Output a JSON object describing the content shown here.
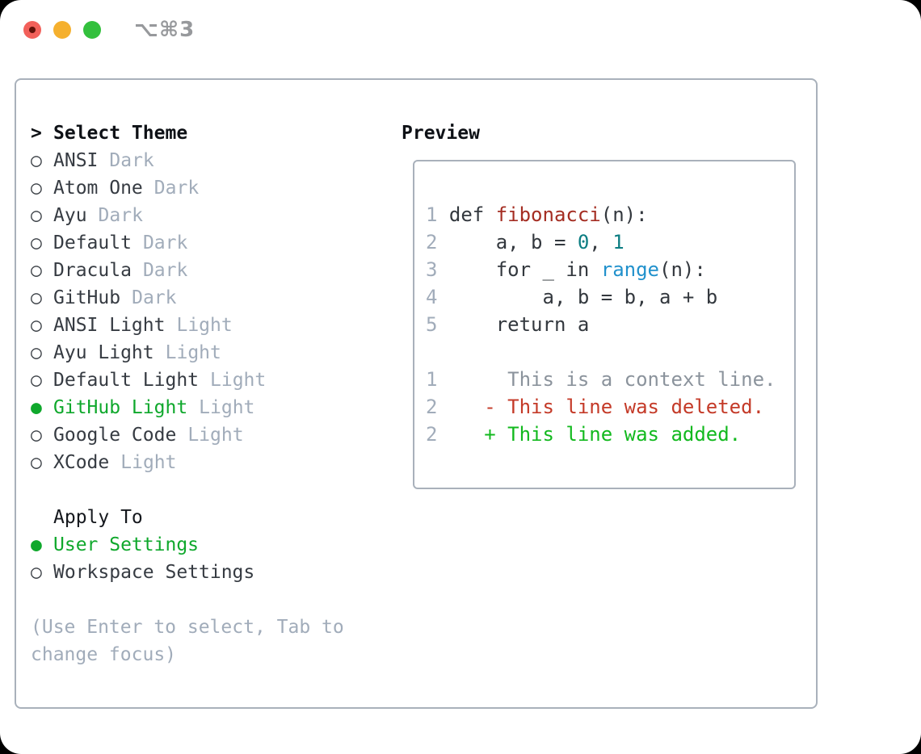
{
  "titlebar": {
    "shortcut_label": "⌥⌘3",
    "traffic_light_colors": {
      "close": "#f2605a",
      "minimize": "#f5b02e",
      "zoom": "#33c03d"
    }
  },
  "colors": {
    "selection_green": "#0fa82c",
    "added_green": "#12b91e",
    "deleted_red": "#c43a28",
    "function_red": "#a42d22",
    "number_teal": "#0c7d82",
    "call_blue": "#2191cc",
    "muted_gray": "#a1acba",
    "panel_border": "#a9b1bb"
  },
  "theme_picker": {
    "header": {
      "marker": ">",
      "label": "Select Theme"
    },
    "items": [
      {
        "marker": "○",
        "name": "ANSI",
        "variant": "Dark"
      },
      {
        "marker": "○",
        "name": "Atom One",
        "variant": "Dark"
      },
      {
        "marker": "○",
        "name": "Ayu",
        "variant": "Dark"
      },
      {
        "marker": "○",
        "name": "Default",
        "variant": "Dark"
      },
      {
        "marker": "○",
        "name": "Dracula",
        "variant": "Dark"
      },
      {
        "marker": "○",
        "name": "GitHub",
        "variant": "Dark"
      },
      {
        "marker": "○",
        "name": "ANSI Light",
        "variant": "Light"
      },
      {
        "marker": "○",
        "name": "Ayu Light",
        "variant": "Light"
      },
      {
        "marker": "○",
        "name": "Default Light",
        "variant": "Light"
      },
      {
        "marker": "●",
        "name": "GitHub Light",
        "variant": "Light",
        "selected": true
      },
      {
        "marker": "○",
        "name": "Google Code",
        "variant": "Light"
      },
      {
        "marker": "○",
        "name": "XCode",
        "variant": "Light"
      }
    ],
    "apply_to": {
      "label": "Apply To",
      "options": [
        {
          "marker": "●",
          "name": "User Settings",
          "selected": true
        },
        {
          "marker": "○",
          "name": "Workspace Settings",
          "selected": false
        }
      ]
    },
    "hint": "(Use Enter to select, Tab to change focus)"
  },
  "preview": {
    "title": "Preview",
    "code_lines": [
      {
        "num": "1",
        "pre": " def ",
        "fn": "fibonacci",
        "post": "(n):"
      },
      {
        "num": "2",
        "pre": "     a, b = ",
        "num1": "0",
        "mid": ", ",
        "num2": "1"
      },
      {
        "num": "3",
        "pre": "     for _ in ",
        "call": "range",
        "post": "(n):"
      },
      {
        "num": "4",
        "text": "         a, b = b, a + b"
      },
      {
        "num": "5",
        "text": "     return a"
      }
    ],
    "diff_lines": [
      {
        "num": "1",
        "kind": "context",
        "text": "      This is a context line."
      },
      {
        "num": "2",
        "kind": "deleted",
        "text": "    - This line was deleted."
      },
      {
        "num": "2",
        "kind": "added",
        "text": "    + This line was added."
      }
    ]
  }
}
